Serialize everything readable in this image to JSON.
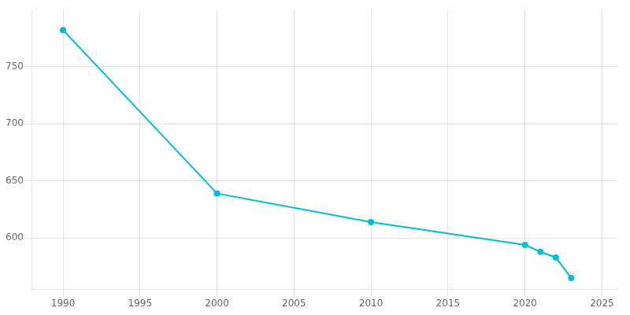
{
  "chart_data": {
    "type": "line",
    "x": [
      1990,
      2000,
      2010,
      2020,
      2021,
      2022,
      2023
    ],
    "values": [
      782,
      639,
      614,
      594,
      588,
      583,
      565
    ],
    "color": "#00bcd4",
    "marker": "circle",
    "xlim": [
      1988,
      2026
    ],
    "ylim": [
      555,
      800
    ],
    "xticks": [
      1990,
      1995,
      2000,
      2005,
      2010,
      2015,
      2020,
      2025
    ],
    "yticks": [
      600,
      650,
      700,
      750
    ],
    "grid": true
  }
}
